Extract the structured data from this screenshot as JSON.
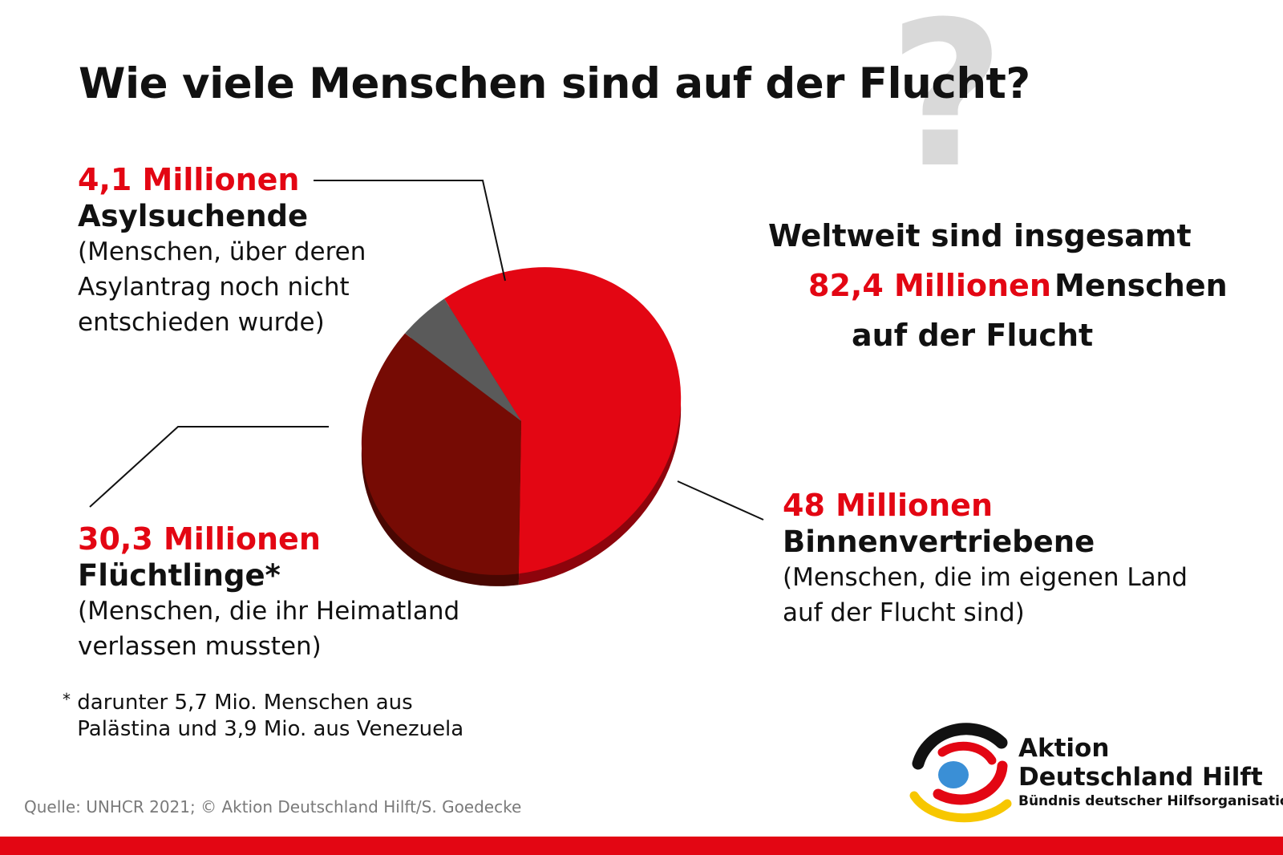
{
  "title": "Wie viele Menschen sind auf der Flucht?",
  "decor": {
    "question_mark": "?"
  },
  "summary": {
    "line1": "Weltweit sind insgesamt",
    "highlight": "82,4 Millionen",
    "line2_rest": "Menschen",
    "line3": "auf der Flucht"
  },
  "chart_data": {
    "type": "pie",
    "categories": [
      "Binnenvertriebene",
      "Flüchtlinge*",
      "Asylsuchende"
    ],
    "values": [
      48,
      30.3,
      4.1
    ],
    "unit": "Millionen",
    "value_labels": [
      "48 Millionen",
      "30,3 Millionen",
      "4,1 Millionen"
    ],
    "descriptions": [
      [
        "(Menschen, die im eigenen Land",
        "auf der Flucht sind)"
      ],
      [
        "(Menschen, die ihr Heimatland",
        "verlassen mussten)"
      ],
      [
        "(Menschen, über deren",
        "Asylantrag noch nicht",
        "entschieden wurde)"
      ]
    ],
    "colors": [
      "#e30613",
      "#760b04",
      "#5a5a5a"
    ],
    "total_label": "82,4 Millionen"
  },
  "footnote": {
    "marker": "*",
    "lines": [
      "darunter 5,7 Mio. Menschen aus",
      "Palästina und 3,9 Mio. aus Venezuela"
    ]
  },
  "source": "Quelle: UNHCR 2021; © Aktion Deutschland Hilft/S. Goedecke",
  "logo": {
    "line1": "Aktion",
    "line2": "Deutschland Hilft",
    "tagline": "Bündnis deutscher Hilfsorganisationen",
    "colors": {
      "black": "#111111",
      "red": "#e30613",
      "yellow": "#f7c700",
      "blue": "#3a8fd6"
    }
  },
  "accent_bar_color": "#e30613"
}
